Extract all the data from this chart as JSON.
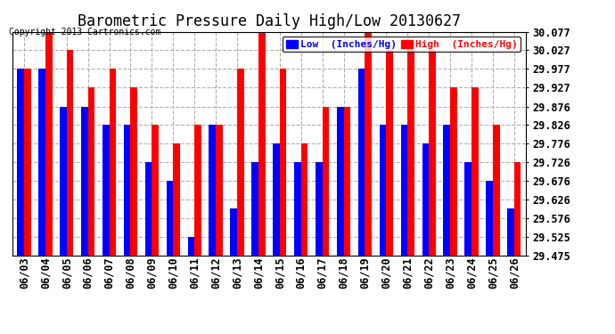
{
  "title": "Barometric Pressure Daily High/Low 20130627",
  "copyright": "Copyright 2013 Cartronics.com",
  "legend_low": "Low  (Inches/Hg)",
  "legend_high": "High  (Inches/Hg)",
  "dates": [
    "06/03",
    "06/04",
    "06/05",
    "06/06",
    "06/07",
    "06/08",
    "06/09",
    "06/10",
    "06/11",
    "06/12",
    "06/13",
    "06/14",
    "06/15",
    "06/16",
    "06/17",
    "06/18",
    "06/19",
    "06/20",
    "06/21",
    "06/22",
    "06/23",
    "06/24",
    "06/25",
    "06/26"
  ],
  "low_values": [
    29.977,
    29.977,
    29.876,
    29.876,
    29.826,
    29.826,
    29.726,
    29.676,
    29.525,
    29.826,
    29.601,
    29.726,
    29.776,
    29.726,
    29.726,
    29.876,
    29.977,
    29.826,
    29.826,
    29.776,
    29.826,
    29.726,
    29.676,
    29.601
  ],
  "high_values": [
    29.977,
    30.077,
    30.027,
    29.927,
    29.977,
    29.927,
    29.826,
    29.776,
    29.826,
    29.826,
    29.977,
    30.077,
    29.977,
    29.776,
    29.876,
    29.876,
    30.077,
    30.027,
    30.027,
    30.027,
    29.927,
    29.927,
    29.826,
    29.726
  ],
  "ylim_min": 29.475,
  "ylim_max": 30.077,
  "yticks": [
    29.475,
    29.525,
    29.576,
    29.626,
    29.676,
    29.726,
    29.776,
    29.826,
    29.876,
    29.927,
    29.977,
    30.027,
    30.077
  ],
  "bar_color_low": "#0000ff",
  "bar_color_high": "#ff0000",
  "bg_color": "#ffffff",
  "grid_color": "#b0b0b0",
  "title_fontsize": 12,
  "copyright_fontsize": 7,
  "tick_fontsize": 8.5,
  "legend_fontsize": 8
}
